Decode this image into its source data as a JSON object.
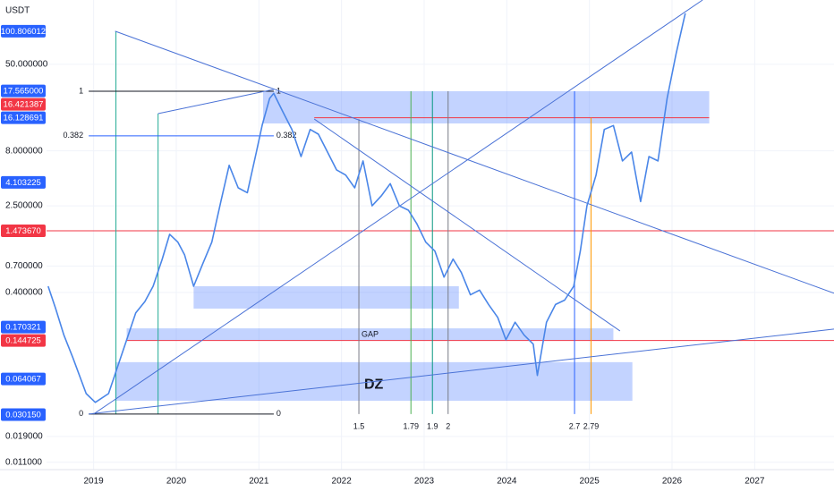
{
  "chart_data": {
    "type": "line",
    "unit": "USDT",
    "log_scale": true,
    "grid": true,
    "color": "#4a86e8",
    "xlim": [
      2018.43,
      2027.96
    ],
    "ylim": [
      0.0094,
      195
    ],
    "xticks": [
      2019,
      2020,
      2021,
      2022,
      2023,
      2024,
      2025,
      2026,
      2027
    ],
    "yticks": [
      {
        "value": 50,
        "label": "50.000000"
      },
      {
        "value": 8,
        "label": "8.000000"
      },
      {
        "value": 2.5,
        "label": "2.500000"
      },
      {
        "value": 0.7,
        "label": "0.700000"
      },
      {
        "value": 0.4,
        "label": "0.400000"
      },
      {
        "value": 0.019,
        "label": "0.019000"
      },
      {
        "value": 0.011,
        "label": "0.011000"
      }
    ],
    "price_labels": [
      {
        "value": 100.806012,
        "label": "100.806012",
        "color": "#2962ff"
      },
      {
        "value": 17.565,
        "label": "17.565000",
        "color": "#2962ff"
      },
      {
        "value": 16.421387,
        "label": "16.421387",
        "color": "#f23645"
      },
      {
        "value": 16.128691,
        "label": "16.128691",
        "color": "#2962ff"
      },
      {
        "value": 4.103225,
        "label": "4.103225",
        "color": "#2962ff"
      },
      {
        "value": 1.47367,
        "label": "1.473670",
        "color": "#f23645"
      },
      {
        "value": 0.170321,
        "label": "0.170321",
        "color": "#2962ff"
      },
      {
        "value": 0.144725,
        "label": "0.144725",
        "color": "#f23645"
      },
      {
        "value": 0.064067,
        "label": "0.064067",
        "color": "#2962ff"
      },
      {
        "value": 0.03015,
        "label": "0.030150",
        "color": "#2962ff"
      }
    ],
    "x": [
      2018.45,
      2018.54,
      2018.64,
      2018.75,
      2018.91,
      2019.02,
      2019.18,
      2019.29,
      2019.4,
      2019.51,
      2019.62,
      2019.72,
      2019.83,
      2019.92,
      2020.02,
      2020.1,
      2020.21,
      2020.32,
      2020.43,
      2020.54,
      2020.64,
      2020.75,
      2020.86,
      2020.97,
      2021.04,
      2021.13,
      2021.18,
      2021.29,
      2021.4,
      2021.51,
      2021.62,
      2021.72,
      2021.83,
      2021.94,
      2022.05,
      2022.16,
      2022.26,
      2022.37,
      2022.48,
      2022.59,
      2022.7,
      2022.81,
      2022.91,
      2023.02,
      2023.13,
      2023.24,
      2023.35,
      2023.45,
      2023.56,
      2023.67,
      2023.78,
      2023.89,
      2023.99,
      2024.1,
      2024.21,
      2024.32,
      2024.37,
      2024.48,
      2024.59,
      2024.7,
      2024.81,
      2024.89,
      2024.97,
      2025.08,
      2025.18,
      2025.29,
      2025.4,
      2025.51,
      2025.62,
      2025.72,
      2025.83,
      2025.94,
      2026.05,
      2026.16
    ],
    "values": [
      0.456,
      0.284,
      0.162,
      0.1,
      0.047,
      0.039,
      0.047,
      0.083,
      0.147,
      0.26,
      0.33,
      0.456,
      0.81,
      1.37,
      1.16,
      0.89,
      0.456,
      0.73,
      1.16,
      2.74,
      5.9,
      3.66,
      3.3,
      7.82,
      13.8,
      24.3,
      27,
      18.3,
      12.6,
      7.1,
      12.6,
      11.4,
      7.8,
      5.35,
      4.8,
      3.66,
      6.47,
      2.5,
      3.08,
      4.0,
      2.5,
      2.28,
      1.72,
      1.16,
      0.96,
      0.553,
      0.81,
      0.61,
      0.38,
      0.42,
      0.31,
      0.236,
      0.147,
      0.213,
      0.162,
      0.134,
      0.069,
      0.213,
      0.31,
      0.34,
      0.456,
      0.96,
      2.5,
      4.8,
      12.6,
      13.7,
      6.47,
      7.8,
      2.74,
      7.1,
      6.47,
      24.3,
      62.8,
      147
    ],
    "zones": [
      {
        "x": [
          2021.05,
          2026.45
        ],
        "y": [
          14.3,
          28.3
        ]
      },
      {
        "x": [
          2020.21,
          2023.42
        ],
        "y": [
          0.284,
          0.456
        ]
      },
      {
        "x": [
          2019.4,
          2025.29
        ],
        "y": [
          0.144,
          0.187
        ],
        "label": "GAP"
      },
      {
        "x": [
          2019.26,
          2025.52
        ],
        "y": [
          0.0404,
          0.0914
        ],
        "label": "DZ"
      }
    ],
    "hlines": [
      {
        "value": 1.47367,
        "x": [
          2018.43,
          2027.96
        ],
        "color": "#f23645"
      },
      {
        "value": 0.144725,
        "x": [
          2019.4,
          2027.96
        ],
        "color": "#f23645"
      },
      {
        "value": 16.128691,
        "x": [
          2021.67,
          2026.45
        ],
        "color": "#f23645"
      }
    ],
    "trendlines": [
      {
        "x": [
          2019.0,
          2026.37
        ],
        "y": [
          0.0305,
          195
        ]
      },
      {
        "x": [
          2018.94,
          2027.96
        ],
        "y": [
          0.0305,
          0.184
        ]
      },
      {
        "x": [
          2019.26,
          2027.96
        ],
        "y": [
          100.8,
          0.393
        ]
      },
      {
        "x": [
          2019.78,
          2021.18
        ],
        "y": [
          17.6,
          29.4
        ]
      },
      {
        "x": [
          2021.67,
          2025.37
        ],
        "y": [
          15.7,
          0.177
        ]
      }
    ],
    "vlines": [
      {
        "x": 2019.27,
        "y": [
          0.0305,
          100.8
        ],
        "color": "#22ab94"
      },
      {
        "x": 2019.78,
        "y": [
          0.0305,
          17.6
        ],
        "color": "#22ab94"
      },
      {
        "x": 2022.21,
        "y": [
          0.0305,
          15.7
        ],
        "label": "1.5",
        "color": "#787b86"
      },
      {
        "x": 2022.84,
        "y": [
          0.0305,
          28.3
        ],
        "label": "1.79",
        "color": "#4caf50"
      },
      {
        "x": 2023.1,
        "y": [
          0.0305,
          28.3
        ],
        "label": "1.9",
        "color": "#089981"
      },
      {
        "x": 2023.29,
        "y": [
          0.0305,
          28.3
        ],
        "label": "2",
        "color": "#787b86"
      },
      {
        "x": 2024.82,
        "y": [
          0.0305,
          28.3
        ],
        "label": "2.7",
        "color": "#2962ff"
      },
      {
        "x": 2025.02,
        "y": [
          0.0305,
          16.1
        ],
        "label": "2.79",
        "color": "#ff9800"
      }
    ],
    "fib": {
      "x": [
        2018.94,
        2021.18
      ],
      "levels": [
        {
          "label": "1",
          "value": 28.3,
          "color": "#131722"
        },
        {
          "label": "0.382",
          "value": 11.0,
          "color": "#2962ff"
        },
        {
          "label": "0",
          "value": 0.0305,
          "color": "#131722"
        }
      ]
    }
  }
}
